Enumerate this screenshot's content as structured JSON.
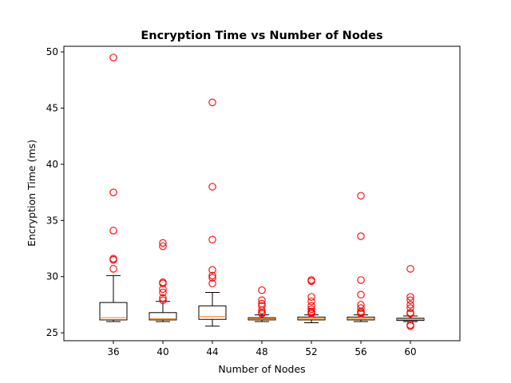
{
  "chart_data": {
    "type": "box",
    "title": "Encryption Time vs Number of Nodes",
    "xlabel": "Number of Nodes",
    "ylabel": "Encryption Time (ms)",
    "ylim": [
      24.3,
      50.5
    ],
    "yticks": [
      25,
      30,
      35,
      40,
      45,
      50
    ],
    "grid": false,
    "categories": [
      "36",
      "40",
      "44",
      "48",
      "52",
      "56",
      "60"
    ],
    "boxes": [
      {
        "category": "36",
        "whisker_low": 26.0,
        "q1": 26.15,
        "median": 26.35,
        "q3": 27.7,
        "whisker_high": 30.1,
        "outliers": [
          49.5,
          37.5,
          34.1,
          31.6,
          31.5,
          30.7
        ]
      },
      {
        "category": "40",
        "whisker_low": 26.0,
        "q1": 26.15,
        "median": 26.25,
        "q3": 26.8,
        "whisker_high": 27.8,
        "outliers": [
          33.0,
          32.7,
          29.5,
          29.4,
          28.9,
          28.6,
          28.1,
          27.9
        ]
      },
      {
        "category": "44",
        "whisker_low": 25.6,
        "q1": 26.2,
        "median": 26.45,
        "q3": 27.4,
        "whisker_high": 28.6,
        "outliers": [
          45.5,
          38.0,
          33.3,
          30.6,
          30.1,
          29.9,
          29.4
        ]
      },
      {
        "category": "48",
        "whisker_low": 26.0,
        "q1": 26.15,
        "median": 26.25,
        "q3": 26.35,
        "whisker_high": 26.6,
        "outliers": [
          28.8,
          27.9,
          27.6,
          27.4,
          27.0,
          26.8,
          26.7
        ]
      },
      {
        "category": "52",
        "whisker_low": 25.9,
        "q1": 26.15,
        "median": 26.25,
        "q3": 26.4,
        "whisker_high": 26.6,
        "outliers": [
          29.7,
          29.6,
          28.2,
          27.8,
          27.4,
          27.1,
          26.9,
          26.8,
          26.7
        ]
      },
      {
        "category": "56",
        "whisker_low": 26.0,
        "q1": 26.15,
        "median": 26.25,
        "q3": 26.4,
        "whisker_high": 26.6,
        "outliers": [
          37.2,
          33.6,
          29.7,
          28.4,
          27.5,
          27.2,
          26.9,
          26.8,
          26.7
        ]
      },
      {
        "category": "60",
        "whisker_low": 26.0,
        "q1": 26.1,
        "median": 26.2,
        "q3": 26.3,
        "whisker_high": 26.5,
        "outliers": [
          30.7,
          28.2,
          27.9,
          27.5,
          27.2,
          26.8,
          26.7,
          25.7,
          25.6
        ]
      }
    ],
    "colors": {
      "box": "#000000",
      "median": "#ff7f0e",
      "outlier": "#ff0000",
      "frame": "#000000"
    }
  }
}
